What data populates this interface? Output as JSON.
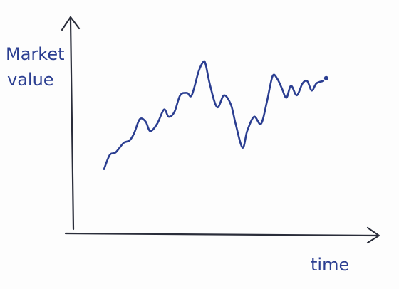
{
  "chart_data": {
    "type": "line",
    "title": "",
    "xlabel": "time",
    "ylabel_lines": [
      "Market",
      "value"
    ],
    "grid": false,
    "legend": "none",
    "xlim": [
      0,
      100
    ],
    "ylim": [
      0,
      100
    ],
    "x_ticks_labeled": false,
    "y_ticks_labeled": false,
    "series": [
      {
        "x": [
          0,
          2.5,
          5,
          8.5,
          11,
          13,
          15.5,
          18,
          20,
          23,
          26,
          28,
          30.5,
          33,
          36,
          38,
          41,
          43,
          44,
          46,
          49,
          52,
          55,
          57,
          60,
          62,
          65,
          68,
          70.5,
          73,
          75,
          77,
          79,
          81,
          83.5,
          86,
          88,
          90,
          92,
          95
        ],
        "y": [
          38,
          44,
          45,
          49,
          50,
          53,
          59,
          58,
          54,
          57,
          63,
          60,
          62,
          69,
          70,
          69,
          79,
          83,
          82,
          73,
          64,
          69,
          65,
          57,
          47,
          54,
          60,
          57,
          66,
          77,
          76,
          72,
          68,
          73,
          69,
          74,
          75,
          71,
          74,
          75
        ],
        "color": "#2b3e91"
      }
    ]
  }
}
